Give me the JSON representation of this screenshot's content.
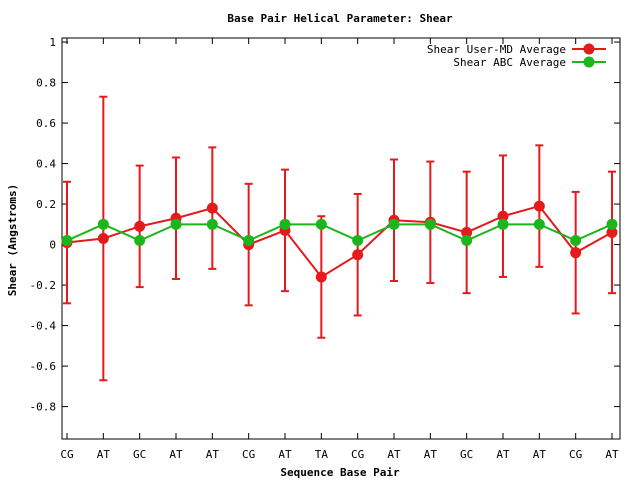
{
  "chart_data": {
    "type": "line",
    "title": "Base Pair Helical Parameter: Shear",
    "xlabel": "Sequence Base Pair",
    "ylabel": "Shear (Angstroms)",
    "categories": [
      "CG",
      "AT",
      "GC",
      "AT",
      "AT",
      "CG",
      "AT",
      "TA",
      "CG",
      "AT",
      "AT",
      "GC",
      "AT",
      "AT",
      "CG",
      "AT"
    ],
    "ylim": [
      -0.96,
      1.02
    ],
    "yticks": [
      1,
      0.8,
      0.6,
      0.4,
      0.2,
      0,
      -0.2,
      -0.4,
      -0.6,
      -0.8
    ],
    "ytick_labels": [
      "1",
      "0.8",
      "0.6",
      "0.4",
      "0.2",
      "0",
      "-0.2",
      "-0.4",
      "-0.6",
      "-0.8"
    ],
    "grid": false,
    "legend_position": "top-right",
    "series": [
      {
        "name": "Shear User-MD Average",
        "color": "#e41a1c",
        "values": [
          0.01,
          0.03,
          0.09,
          0.13,
          0.18,
          0.0,
          0.07,
          -0.16,
          -0.05,
          0.12,
          0.11,
          0.06,
          0.14,
          0.19,
          -0.04,
          0.06
        ],
        "error_upper": [
          0.31,
          0.73,
          0.39,
          0.43,
          0.48,
          0.3,
          0.37,
          0.14,
          0.25,
          0.42,
          0.41,
          0.36,
          0.44,
          0.49,
          0.26,
          0.36
        ],
        "error_lower": [
          -0.29,
          -0.67,
          -0.21,
          -0.17,
          -0.12,
          -0.3,
          -0.23,
          -0.46,
          -0.35,
          -0.18,
          -0.19,
          -0.24,
          -0.16,
          -0.11,
          -0.34,
          -0.24
        ]
      },
      {
        "name": "Shear ABC Average",
        "color": "#1cb51c",
        "values": [
          0.02,
          0.1,
          0.02,
          0.1,
          0.1,
          0.02,
          0.1,
          0.1,
          0.02,
          0.1,
          0.1,
          0.02,
          0.1,
          0.1,
          0.02,
          0.1
        ]
      }
    ]
  }
}
